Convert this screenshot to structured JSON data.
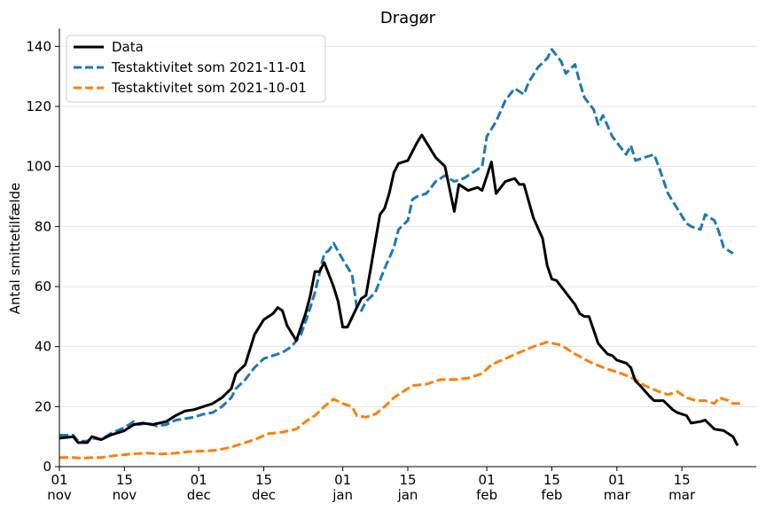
{
  "chart_data": {
    "type": "line",
    "title": "Dragør",
    "xlabel": "",
    "ylabel": "Antal smittetilfælde",
    "ylim": [
      0,
      146
    ],
    "yticks": [
      0,
      20,
      40,
      60,
      80,
      100,
      120,
      140
    ],
    "xlim": [
      "2021-11-01",
      "2022-03-31"
    ],
    "xticks": [
      {
        "date": "2021-11-01",
        "day": "01",
        "month": "nov"
      },
      {
        "date": "2021-11-15",
        "day": "15",
        "month": "nov"
      },
      {
        "date": "2021-12-01",
        "day": "01",
        "month": "dec"
      },
      {
        "date": "2021-12-15",
        "day": "15",
        "month": "dec"
      },
      {
        "date": "2022-01-01",
        "day": "01",
        "month": "jan"
      },
      {
        "date": "2022-01-15",
        "day": "15",
        "month": "jan"
      },
      {
        "date": "2022-02-01",
        "day": "01",
        "month": "feb"
      },
      {
        "date": "2022-02-15",
        "day": "15",
        "month": "feb"
      },
      {
        "date": "2022-03-01",
        "day": "01",
        "month": "mar"
      },
      {
        "date": "2022-03-15",
        "day": "15",
        "month": "mar"
      }
    ],
    "grid": "horizontal",
    "legend_position": "top-left",
    "series": [
      {
        "name": "Data",
        "color": "#000000",
        "style": "solid",
        "points": [
          [
            "2021-11-01",
            9.5
          ],
          [
            "2021-11-04",
            10
          ],
          [
            "2021-11-05",
            8
          ],
          [
            "2021-11-07",
            8
          ],
          [
            "2021-11-08",
            10
          ],
          [
            "2021-11-10",
            9
          ],
          [
            "2021-11-12",
            10.5
          ],
          [
            "2021-11-15",
            12
          ],
          [
            "2021-11-17",
            14
          ],
          [
            "2021-11-19",
            14.5
          ],
          [
            "2021-11-21",
            14
          ],
          [
            "2021-11-24",
            15
          ],
          [
            "2021-11-26",
            17
          ],
          [
            "2021-11-28",
            18.5
          ],
          [
            "2021-11-30",
            19
          ],
          [
            "2021-12-02",
            20
          ],
          [
            "2021-12-04",
            21
          ],
          [
            "2021-12-06",
            23
          ],
          [
            "2021-12-08",
            26
          ],
          [
            "2021-12-09",
            31
          ],
          [
            "2021-12-11",
            34
          ],
          [
            "2021-12-13",
            44
          ],
          [
            "2021-12-15",
            49
          ],
          [
            "2021-12-17",
            51
          ],
          [
            "2021-12-18",
            53
          ],
          [
            "2021-12-19",
            52
          ],
          [
            "2021-12-20",
            47
          ],
          [
            "2021-12-22",
            42
          ],
          [
            "2021-12-24",
            51
          ],
          [
            "2021-12-25",
            57
          ],
          [
            "2021-12-26",
            65
          ],
          [
            "2021-12-27",
            65
          ],
          [
            "2021-12-28",
            68
          ],
          [
            "2021-12-30",
            60
          ],
          [
            "2021-12-31",
            55
          ],
          [
            "2022-01-01",
            46.5
          ],
          [
            "2022-01-02",
            46.5
          ],
          [
            "2022-01-04",
            53
          ],
          [
            "2022-01-05",
            56
          ],
          [
            "2022-01-06",
            57
          ],
          [
            "2022-01-07",
            66
          ],
          [
            "2022-01-08",
            75
          ],
          [
            "2022-01-09",
            84
          ],
          [
            "2022-01-10",
            86
          ],
          [
            "2022-01-11",
            91
          ],
          [
            "2022-01-12",
            98
          ],
          [
            "2022-01-13",
            101
          ],
          [
            "2022-01-15",
            102
          ],
          [
            "2022-01-17",
            108
          ],
          [
            "2022-01-18",
            110.5
          ],
          [
            "2022-01-19",
            108
          ],
          [
            "2022-01-21",
            103
          ],
          [
            "2022-01-23",
            100
          ],
          [
            "2022-01-25",
            85
          ],
          [
            "2022-01-26",
            94
          ],
          [
            "2022-01-27",
            93
          ],
          [
            "2022-01-28",
            92
          ],
          [
            "2022-01-30",
            93
          ],
          [
            "2022-01-31",
            92
          ],
          [
            "2022-02-02",
            101.5
          ],
          [
            "2022-02-03",
            91
          ],
          [
            "2022-02-05",
            95
          ],
          [
            "2022-02-07",
            96
          ],
          [
            "2022-02-08",
            94
          ],
          [
            "2022-02-09",
            94
          ],
          [
            "2022-02-11",
            83
          ],
          [
            "2022-02-13",
            76
          ],
          [
            "2022-02-14",
            67
          ],
          [
            "2022-02-15",
            62.5
          ],
          [
            "2022-02-16",
            62
          ],
          [
            "2022-02-18",
            58
          ],
          [
            "2022-02-20",
            54
          ],
          [
            "2022-02-21",
            51
          ],
          [
            "2022-02-22",
            50
          ],
          [
            "2022-02-23",
            50
          ],
          [
            "2022-02-25",
            41
          ],
          [
            "2022-02-27",
            37.5
          ],
          [
            "2022-02-28",
            37
          ],
          [
            "2022-03-01",
            35.5
          ],
          [
            "2022-03-03",
            34.5
          ],
          [
            "2022-03-04",
            33
          ],
          [
            "2022-03-05",
            28.5
          ],
          [
            "2022-03-06",
            27
          ],
          [
            "2022-03-08",
            23.5
          ],
          [
            "2022-03-09",
            22
          ],
          [
            "2022-03-11",
            22
          ],
          [
            "2022-03-13",
            19
          ],
          [
            "2022-03-14",
            18
          ],
          [
            "2022-03-16",
            17
          ],
          [
            "2022-03-17",
            14.5
          ],
          [
            "2022-03-19",
            15
          ],
          [
            "2022-03-20",
            15.5
          ],
          [
            "2022-03-22",
            12.5
          ],
          [
            "2022-03-24",
            12
          ],
          [
            "2022-03-26",
            10
          ],
          [
            "2022-03-27",
            7
          ]
        ]
      },
      {
        "name": "Testaktivitet som 2021-11-01",
        "color": "#1f77b4",
        "style": "dashed",
        "points": [
          [
            "2021-11-01",
            10.5
          ],
          [
            "2021-11-04",
            10.5
          ],
          [
            "2021-11-05",
            8.5
          ],
          [
            "2021-11-07",
            8.5
          ],
          [
            "2021-11-08",
            9.5
          ],
          [
            "2021-11-10",
            9
          ],
          [
            "2021-11-12",
            11
          ],
          [
            "2021-11-15",
            13
          ],
          [
            "2021-11-17",
            15
          ],
          [
            "2021-11-18",
            14
          ],
          [
            "2021-11-20",
            14.5
          ],
          [
            "2021-11-22",
            13.5
          ],
          [
            "2021-11-24",
            14
          ],
          [
            "2021-11-26",
            15.5
          ],
          [
            "2021-11-28",
            16
          ],
          [
            "2021-11-30",
            16.5
          ],
          [
            "2021-12-02",
            17.5
          ],
          [
            "2021-12-04",
            18
          ],
          [
            "2021-12-06",
            20
          ],
          [
            "2021-12-08",
            23
          ],
          [
            "2021-12-09",
            26
          ],
          [
            "2021-12-11",
            29
          ],
          [
            "2021-12-13",
            33
          ],
          [
            "2021-12-15",
            36
          ],
          [
            "2021-12-17",
            37
          ],
          [
            "2021-12-19",
            38
          ],
          [
            "2021-12-21",
            40
          ],
          [
            "2021-12-23",
            44
          ],
          [
            "2021-12-25",
            53
          ],
          [
            "2021-12-26",
            58
          ],
          [
            "2021-12-28",
            71
          ],
          [
            "2021-12-29",
            72
          ],
          [
            "2021-12-30",
            74.5
          ],
          [
            "2022-01-01",
            69
          ],
          [
            "2022-01-03",
            64
          ],
          [
            "2022-01-04",
            53
          ],
          [
            "2022-01-05",
            52
          ],
          [
            "2022-01-06",
            55
          ],
          [
            "2022-01-08",
            58
          ],
          [
            "2022-01-10",
            66
          ],
          [
            "2022-01-12",
            73
          ],
          [
            "2022-01-13",
            79
          ],
          [
            "2022-01-15",
            82
          ],
          [
            "2022-01-16",
            89
          ],
          [
            "2022-01-17",
            90
          ],
          [
            "2022-01-19",
            91
          ],
          [
            "2022-01-21",
            95
          ],
          [
            "2022-01-23",
            97
          ],
          [
            "2022-01-25",
            95
          ],
          [
            "2022-01-27",
            96
          ],
          [
            "2022-01-29",
            98
          ],
          [
            "2022-01-31",
            100
          ],
          [
            "2022-02-01",
            110
          ],
          [
            "2022-02-03",
            115
          ],
          [
            "2022-02-05",
            122
          ],
          [
            "2022-02-07",
            126
          ],
          [
            "2022-02-09",
            124
          ],
          [
            "2022-02-10",
            128
          ],
          [
            "2022-02-12",
            133
          ],
          [
            "2022-02-14",
            136
          ],
          [
            "2022-02-15",
            139
          ],
          [
            "2022-02-17",
            135
          ],
          [
            "2022-02-18",
            131
          ],
          [
            "2022-02-20",
            134
          ],
          [
            "2022-02-21",
            128
          ],
          [
            "2022-02-22",
            123
          ],
          [
            "2022-02-24",
            119
          ],
          [
            "2022-02-25",
            114
          ],
          [
            "2022-02-26",
            117
          ],
          [
            "2022-02-28",
            110
          ],
          [
            "2022-03-01",
            108
          ],
          [
            "2022-03-03",
            104
          ],
          [
            "2022-03-04",
            107
          ],
          [
            "2022-03-05",
            102
          ],
          [
            "2022-03-07",
            103
          ],
          [
            "2022-03-09",
            104
          ],
          [
            "2022-03-10",
            100
          ],
          [
            "2022-03-12",
            91
          ],
          [
            "2022-03-14",
            86
          ],
          [
            "2022-03-16",
            81
          ],
          [
            "2022-03-17",
            80
          ],
          [
            "2022-03-19",
            79
          ],
          [
            "2022-03-20",
            84
          ],
          [
            "2022-03-22",
            82
          ],
          [
            "2022-03-23",
            78
          ],
          [
            "2022-03-24",
            73
          ],
          [
            "2022-03-25",
            72
          ],
          [
            "2022-03-26",
            71
          ]
        ]
      },
      {
        "name": "Testaktivitet som 2021-10-01",
        "color": "#ff7f0e",
        "style": "dashed",
        "points": [
          [
            "2021-11-01",
            3
          ],
          [
            "2021-11-04",
            3
          ],
          [
            "2021-11-06",
            2.8
          ],
          [
            "2021-11-08",
            3
          ],
          [
            "2021-11-10",
            3
          ],
          [
            "2021-11-12",
            3.5
          ],
          [
            "2021-11-15",
            4
          ],
          [
            "2021-11-17",
            4.3
          ],
          [
            "2021-11-20",
            4.5
          ],
          [
            "2021-11-23",
            4.2
          ],
          [
            "2021-11-26",
            4.5
          ],
          [
            "2021-11-29",
            5
          ],
          [
            "2021-12-02",
            5.2
          ],
          [
            "2021-12-05",
            5.5
          ],
          [
            "2021-12-08",
            6.5
          ],
          [
            "2021-12-10",
            7.5
          ],
          [
            "2021-12-13",
            9
          ],
          [
            "2021-12-16",
            11
          ],
          [
            "2021-12-19",
            11.5
          ],
          [
            "2021-12-22",
            12.5
          ],
          [
            "2021-12-24",
            15
          ],
          [
            "2021-12-26",
            17
          ],
          [
            "2021-12-28",
            20
          ],
          [
            "2021-12-30",
            22.5
          ],
          [
            "2022-01-01",
            21
          ],
          [
            "2022-01-03",
            20
          ],
          [
            "2022-01-04",
            17
          ],
          [
            "2022-01-06",
            16.5
          ],
          [
            "2022-01-08",
            17.5
          ],
          [
            "2022-01-10",
            20
          ],
          [
            "2022-01-12",
            23
          ],
          [
            "2022-01-14",
            25
          ],
          [
            "2022-01-16",
            27
          ],
          [
            "2022-01-19",
            27.5
          ],
          [
            "2022-01-22",
            29
          ],
          [
            "2022-01-25",
            29
          ],
          [
            "2022-01-28",
            29.5
          ],
          [
            "2022-01-31",
            31
          ],
          [
            "2022-02-02",
            34
          ],
          [
            "2022-02-05",
            36
          ],
          [
            "2022-02-08",
            38
          ],
          [
            "2022-02-11",
            40
          ],
          [
            "2022-02-14",
            41.5
          ],
          [
            "2022-02-17",
            40.5
          ],
          [
            "2022-02-20",
            37.5
          ],
          [
            "2022-02-23",
            35
          ],
          [
            "2022-02-26",
            33
          ],
          [
            "2022-02-28",
            32
          ],
          [
            "2022-03-02",
            31
          ],
          [
            "2022-03-05",
            29
          ],
          [
            "2022-03-07",
            27
          ],
          [
            "2022-03-10",
            25
          ],
          [
            "2022-03-12",
            24
          ],
          [
            "2022-03-14",
            25
          ],
          [
            "2022-03-16",
            23
          ],
          [
            "2022-03-18",
            22
          ],
          [
            "2022-03-20",
            22
          ],
          [
            "2022-03-22",
            21
          ],
          [
            "2022-03-23",
            23
          ],
          [
            "2022-03-25",
            22
          ],
          [
            "2022-03-26",
            21
          ],
          [
            "2022-03-28",
            21
          ]
        ]
      }
    ]
  }
}
